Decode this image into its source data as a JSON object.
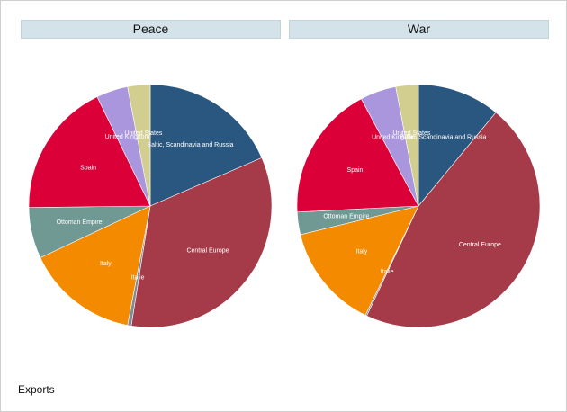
{
  "legend_title": "Exports",
  "colors": {
    "Baltic, Scandinavia and Russia": "#2a577f",
    "Central Europe": "#a53b48",
    "Italie": "#7d8c98",
    "Italy": "#f48a00",
    "Ottoman Empire": "#709994",
    "Spain": "#dc0039",
    "United Kingdom": "#a996dc",
    "United States": "#d2ce90"
  },
  "chart_data": [
    {
      "type": "pie",
      "title": "Peace",
      "categories": [
        "Baltic, Scandinavia and Russia",
        "Central Europe",
        "Italie",
        "Italy",
        "Ottoman Empire",
        "Spain",
        "United Kingdom",
        "United States"
      ],
      "values": [
        18.5,
        34.0,
        0.5,
        15.0,
        6.8,
        18.0,
        4.2,
        3.0
      ]
    },
    {
      "type": "pie",
      "title": "War",
      "categories": [
        "Baltic, Scandinavia and Russia",
        "Central Europe",
        "Italie",
        "Italy",
        "Ottoman Empire",
        "Spain",
        "United Kingdom",
        "United States"
      ],
      "values": [
        11.0,
        46.0,
        0.2,
        14.0,
        3.0,
        18.0,
        4.8,
        3.0
      ]
    }
  ]
}
